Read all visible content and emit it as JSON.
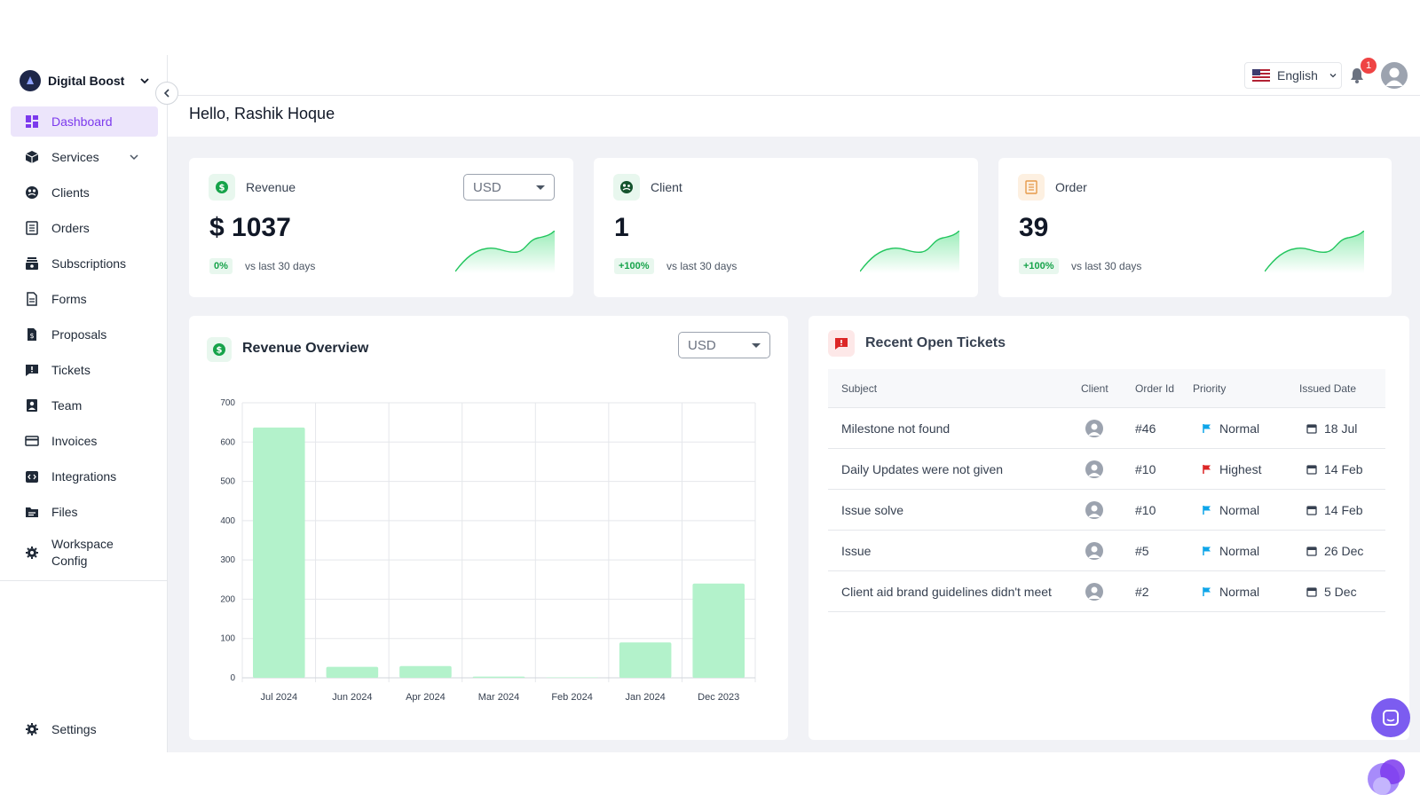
{
  "brand": {
    "name": "Digital Boost"
  },
  "sidebar": {
    "items": [
      {
        "label": "Dashboard",
        "icon": "dashboard-icon",
        "active": true
      },
      {
        "label": "Services",
        "icon": "cube-icon",
        "has_children": true
      },
      {
        "label": "Clients",
        "icon": "clients-icon"
      },
      {
        "label": "Orders",
        "icon": "orders-icon"
      },
      {
        "label": "Subscriptions",
        "icon": "subscriptions-icon"
      },
      {
        "label": "Forms",
        "icon": "forms-icon"
      },
      {
        "label": "Proposals",
        "icon": "proposals-icon"
      },
      {
        "label": "Tickets",
        "icon": "tickets-icon"
      },
      {
        "label": "Team",
        "icon": "team-icon"
      },
      {
        "label": "Invoices",
        "icon": "invoices-icon"
      },
      {
        "label": "Integrations",
        "icon": "integrations-icon"
      },
      {
        "label": "Files",
        "icon": "files-icon"
      },
      {
        "label": "Workspace\nConfig",
        "icon": "workspace-config-icon"
      }
    ],
    "settings_label": "Settings"
  },
  "header": {
    "language": "English",
    "notification_count": "1"
  },
  "greeting": "Hello, Rashik Hoque",
  "stats": [
    {
      "label": "Revenue",
      "value": "$ 1037",
      "change": "0%",
      "vs": "vs last 30 days",
      "currency": "USD",
      "icon": "dollar-icon"
    },
    {
      "label": "Client",
      "value": "1",
      "change": "+100%",
      "vs": "vs last 30 days",
      "icon": "globe-icon"
    },
    {
      "label": "Order",
      "value": "39",
      "change": "+100%",
      "vs": "vs last 30 days",
      "icon": "order-list-icon"
    }
  ],
  "revenue_overview": {
    "title": "Revenue Overview",
    "currency": "USD"
  },
  "chart_data": {
    "type": "bar",
    "categories": [
      "Jul 2024",
      "Jun 2024",
      "Apr 2024",
      "Mar 2024",
      "Feb 2024",
      "Jan 2024",
      "Dec 2023"
    ],
    "values": [
      637,
      28,
      30,
      3,
      1,
      90,
      240
    ],
    "ylim": [
      0,
      700
    ],
    "yticks": [
      0,
      100,
      200,
      300,
      400,
      500,
      600,
      700
    ],
    "title": "",
    "xlabel": "",
    "ylabel": "",
    "grid": true,
    "bar_color": "#b3f2cb"
  },
  "tickets": {
    "title": "Recent Open Tickets",
    "columns": [
      "Subject",
      "Client",
      "Order Id",
      "Priority",
      "Issued Date"
    ],
    "rows": [
      {
        "subject": "Milestone not found",
        "order_id": "#46",
        "priority": "Normal",
        "priority_color": "#0ea5e9",
        "date": "18 Jul"
      },
      {
        "subject": "Daily Updates were not given",
        "order_id": "#10",
        "priority": "Highest",
        "priority_color": "#dc2626",
        "date": "14 Feb"
      },
      {
        "subject": "Issue solve",
        "order_id": "#10",
        "priority": "Normal",
        "priority_color": "#0ea5e9",
        "date": "14 Feb"
      },
      {
        "subject": "Issue",
        "order_id": "#5",
        "priority": "Normal",
        "priority_color": "#0ea5e9",
        "date": "26 Dec"
      },
      {
        "subject": "Client aid brand guidelines didn't meet",
        "order_id": "#2",
        "priority": "Normal",
        "priority_color": "#0ea5e9",
        "date": "5 Dec"
      }
    ]
  }
}
